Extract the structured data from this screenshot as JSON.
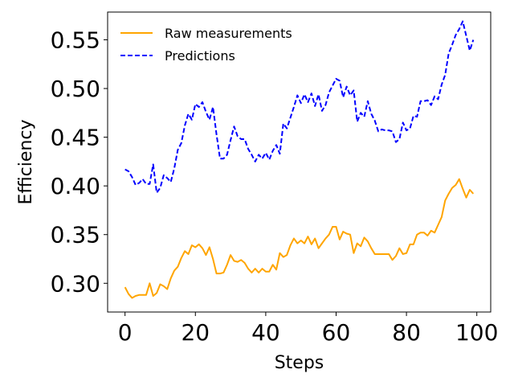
{
  "chart_data": {
    "type": "line",
    "xlabel": "Steps",
    "ylabel": "Efficiency",
    "xlim": [
      -4.95,
      103.95
    ],
    "ylim": [
      0.2705,
      0.5785
    ],
    "xticks": [
      0,
      20,
      40,
      60,
      80,
      100
    ],
    "yticks": [
      0.3,
      0.35,
      0.4,
      0.45,
      0.5,
      0.55
    ],
    "xtick_labels": [
      "0",
      "20",
      "40",
      "60",
      "80",
      "100"
    ],
    "ytick_labels": [
      "0.30",
      "0.35",
      "0.40",
      "0.45",
      "0.50",
      "0.55"
    ],
    "grid": false,
    "legend_position": "top-left",
    "series": [
      {
        "name": "Raw measurements",
        "color": "#FFA500",
        "style": "solid",
        "x": [
          0,
          1,
          2,
          3,
          4,
          5,
          6,
          7,
          8,
          9,
          10,
          11,
          12,
          13,
          14,
          15,
          16,
          17,
          18,
          19,
          20,
          21,
          22,
          23,
          24,
          25,
          26,
          27,
          28,
          29,
          30,
          31,
          32,
          33,
          34,
          35,
          36,
          37,
          38,
          39,
          40,
          41,
          42,
          43,
          44,
          45,
          46,
          47,
          48,
          49,
          50,
          51,
          52,
          53,
          54,
          55,
          56,
          57,
          58,
          59,
          60,
          61,
          62,
          63,
          64,
          65,
          66,
          67,
          68,
          69,
          70,
          71,
          72,
          73,
          74,
          75,
          76,
          77,
          78,
          79,
          80,
          81,
          82,
          83,
          84,
          85,
          86,
          87,
          88,
          89,
          90,
          91,
          92,
          93,
          94,
          95,
          96,
          97,
          98,
          99
        ],
        "values": [
          0.296,
          0.289,
          0.285,
          0.287,
          0.288,
          0.288,
          0.288,
          0.3,
          0.287,
          0.29,
          0.299,
          0.297,
          0.294,
          0.305,
          0.313,
          0.317,
          0.326,
          0.333,
          0.33,
          0.339,
          0.337,
          0.34,
          0.336,
          0.329,
          0.337,
          0.325,
          0.31,
          0.31,
          0.311,
          0.319,
          0.329,
          0.323,
          0.322,
          0.324,
          0.321,
          0.315,
          0.311,
          0.315,
          0.311,
          0.315,
          0.312,
          0.312,
          0.319,
          0.314,
          0.331,
          0.327,
          0.329,
          0.339,
          0.346,
          0.341,
          0.344,
          0.341,
          0.348,
          0.34,
          0.346,
          0.336,
          0.341,
          0.346,
          0.35,
          0.358,
          0.358,
          0.345,
          0.353,
          0.351,
          0.35,
          0.331,
          0.341,
          0.338,
          0.347,
          0.343,
          0.336,
          0.33,
          0.33,
          0.33,
          0.33,
          0.33,
          0.324,
          0.328,
          0.336,
          0.33,
          0.331,
          0.34,
          0.34,
          0.35,
          0.352,
          0.352,
          0.349,
          0.354,
          0.352,
          0.36,
          0.368,
          0.385,
          0.392,
          0.398,
          0.401,
          0.407,
          0.397,
          0.388,
          0.396,
          0.392
        ]
      },
      {
        "name": "Predictions",
        "color": "#0000FF",
        "style": "dashed",
        "x": [
          0,
          1,
          2,
          3,
          4,
          5,
          6,
          7,
          8,
          9,
          10,
          11,
          12,
          13,
          14,
          15,
          16,
          17,
          18,
          19,
          20,
          21,
          22,
          23,
          24,
          25,
          26,
          27,
          28,
          29,
          30,
          31,
          32,
          33,
          34,
          35,
          36,
          37,
          38,
          39,
          40,
          41,
          42,
          43,
          44,
          45,
          46,
          47,
          48,
          49,
          50,
          51,
          52,
          53,
          54,
          55,
          56,
          57,
          58,
          59,
          60,
          61,
          62,
          63,
          64,
          65,
          66,
          67,
          68,
          69,
          70,
          71,
          72,
          73,
          74,
          75,
          76,
          77,
          78,
          79,
          80,
          81,
          82,
          83,
          84,
          85,
          86,
          87,
          88,
          89,
          90,
          91,
          92,
          93,
          94,
          95,
          96,
          97,
          98,
          99
        ],
        "values": [
          0.417,
          0.415,
          0.409,
          0.401,
          0.403,
          0.407,
          0.402,
          0.402,
          0.422,
          0.393,
          0.398,
          0.411,
          0.408,
          0.404,
          0.418,
          0.437,
          0.444,
          0.462,
          0.474,
          0.468,
          0.484,
          0.481,
          0.486,
          0.476,
          0.468,
          0.481,
          0.453,
          0.428,
          0.428,
          0.432,
          0.447,
          0.461,
          0.451,
          0.448,
          0.448,
          0.438,
          0.432,
          0.425,
          0.432,
          0.428,
          0.434,
          0.427,
          0.436,
          0.442,
          0.433,
          0.464,
          0.459,
          0.47,
          0.481,
          0.493,
          0.485,
          0.494,
          0.486,
          0.495,
          0.482,
          0.494,
          0.477,
          0.483,
          0.496,
          0.503,
          0.51,
          0.508,
          0.491,
          0.502,
          0.493,
          0.498,
          0.466,
          0.475,
          0.471,
          0.487,
          0.474,
          0.467,
          0.456,
          0.458,
          0.457,
          0.457,
          0.456,
          0.445,
          0.448,
          0.465,
          0.457,
          0.459,
          0.472,
          0.471,
          0.487,
          0.487,
          0.488,
          0.483,
          0.492,
          0.489,
          0.504,
          0.514,
          0.536,
          0.545,
          0.555,
          0.561,
          0.569,
          0.554,
          0.539,
          0.55
        ]
      }
    ]
  }
}
